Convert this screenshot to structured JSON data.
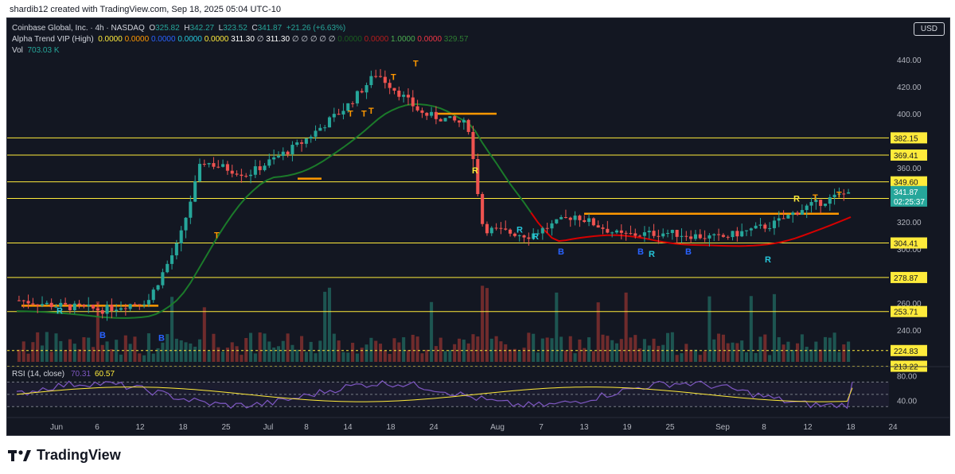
{
  "header": {
    "text": "shardib12 created with TradingView.com, Sep 18, 2025 05:04 UTC-10"
  },
  "legend": {
    "symbol": "Coinbase Global, Inc. · 4h · NASDAQ",
    "open_label": "O",
    "open": "325.82",
    "high_label": "H",
    "high": "342.27",
    "low_label": "L",
    "low": "323.52",
    "close_label": "C",
    "close": "341.87",
    "change": "+21.26 (+6.63%)",
    "indicator_name": "Alpha Trend VIP (High)",
    "indicator_values": [
      {
        "text": "0.0000",
        "color": "#ffeb3b"
      },
      {
        "text": "0.0000",
        "color": "#ff9800"
      },
      {
        "text": "0.0000",
        "color": "#2962ff"
      },
      {
        "text": "0.0000",
        "color": "#26c6da"
      },
      {
        "text": "0.0000",
        "color": "#ffeb3b"
      },
      {
        "text": "311.30",
        "color": "#ffffff"
      },
      {
        "text": "∅",
        "color": "#d1d4dc"
      },
      {
        "text": "311.30",
        "color": "#ffffff"
      },
      {
        "text": "∅ ∅ ∅ ∅ ∅",
        "color": "#d1d4dc"
      },
      {
        "text": "0.0000",
        "color": "#1b5e20"
      },
      {
        "text": "0.0000",
        "color": "#b71c1c"
      },
      {
        "text": "1.0000",
        "color": "#4caf50"
      },
      {
        "text": "0.0000",
        "color": "#f23645"
      },
      {
        "text": "329.57",
        "color": "#2e7d32"
      }
    ],
    "vol_label": "Vol",
    "vol": "703.03 K"
  },
  "currency": "USD",
  "price_axis": {
    "ticks": [
      "440.00",
      "420.00",
      "400.00",
      "360.00",
      "320.00",
      "300.00",
      "260.00",
      "240.00"
    ],
    "level_labels": [
      "382.15",
      "369.41",
      "349.60",
      "337.33",
      "304.41",
      "278.87",
      "253.71",
      "224.83",
      "213.22"
    ],
    "last_price": "341.87",
    "countdown": "02:25:37"
  },
  "time_axis": {
    "labels": [
      "Jun",
      "6",
      "12",
      "18",
      "25",
      "Jul",
      "8",
      "14",
      "18",
      "24",
      "Aug",
      "7",
      "13",
      "19",
      "25",
      "Sep",
      "8",
      "12",
      "18",
      "24"
    ]
  },
  "rsi": {
    "label": "RSI (14, close)",
    "value1": "70.31",
    "value2": "60.57",
    "ticks": [
      "80.00",
      "40.00"
    ]
  },
  "markers": [
    "R",
    "B",
    "B",
    "T",
    "T",
    "T",
    "T",
    "T",
    "T",
    "R",
    "R",
    "R",
    "B",
    "B",
    "R",
    "B",
    "R",
    "R",
    "T",
    "T"
  ],
  "brand": {
    "name": "TradingView"
  },
  "colors": {
    "bg": "#131722",
    "up": "#26a69a",
    "down": "#ef5350",
    "level": "#ffeb3b",
    "trend_up": "#1b7a2a",
    "trend_down": "#d50000",
    "stop": "#ff9800",
    "rsi_line": "#7e57c2",
    "rsi_ma": "#ffeb3b"
  },
  "chart_data": {
    "type": "candlestick",
    "title": "Coinbase Global, Inc. · 4h · NASDAQ",
    "timeframe": "4h",
    "ylim": [
      200,
      450
    ],
    "grid": false,
    "horizontal_levels": [
      382.15,
      369.41,
      349.6,
      337.33,
      304.41,
      278.87,
      253.71,
      224.83,
      213.22
    ],
    "last": {
      "open": 325.82,
      "high": 342.27,
      "low": 323.52,
      "close": 341.87
    },
    "approx_close_path": [
      {
        "x": "Jun 1",
        "y": 262
      },
      {
        "x": "Jun 6",
        "y": 258
      },
      {
        "x": "Jun 12",
        "y": 255
      },
      {
        "x": "Jun 18",
        "y": 262
      },
      {
        "x": "Jun 22",
        "y": 305
      },
      {
        "x": "Jun 25",
        "y": 365
      },
      {
        "x": "Jul 1",
        "y": 355
      },
      {
        "x": "Jul 8",
        "y": 378
      },
      {
        "x": "Jul 14",
        "y": 405
      },
      {
        "x": "Jul 18",
        "y": 430
      },
      {
        "x": "Jul 24",
        "y": 400
      },
      {
        "x": "Jul 30",
        "y": 392
      },
      {
        "x": "Aug 1",
        "y": 315
      },
      {
        "x": "Aug 7",
        "y": 310
      },
      {
        "x": "Aug 13",
        "y": 325
      },
      {
        "x": "Aug 19",
        "y": 310
      },
      {
        "x": "Aug 25",
        "y": 312
      },
      {
        "x": "Sep 1",
        "y": 308
      },
      {
        "x": "Sep 8",
        "y": 318
      },
      {
        "x": "Sep 12",
        "y": 330
      },
      {
        "x": "Sep 18",
        "y": 341.87
      }
    ],
    "rsi": {
      "ylim": [
        20,
        90
      ],
      "value": 70.31,
      "ma": 60.57
    }
  }
}
